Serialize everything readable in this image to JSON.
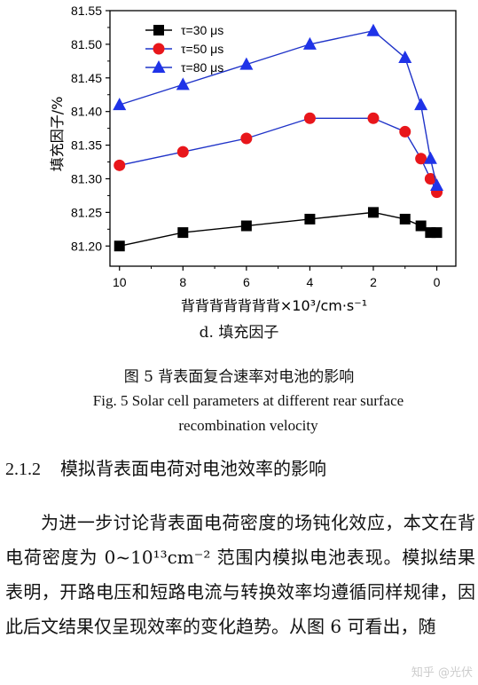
{
  "chart_data": {
    "type": "line",
    "xlabel": "背背背背背背背×10³/cm·s⁻¹",
    "ylabel": "填充因子/%",
    "x_ticks": [
      10,
      8,
      6,
      4,
      2,
      0
    ],
    "y_ticks": [
      "81.20",
      "81.25",
      "81.30",
      "81.35",
      "81.40",
      "81.45",
      "81.50",
      "81.55"
    ],
    "xlim": [
      10.3,
      -0.6
    ],
    "ylim": [
      81.17,
      81.55
    ],
    "grid": false,
    "legend_position": "top-left",
    "series": [
      {
        "name": "τ=30 μs",
        "color": "#000000",
        "marker": "square",
        "x": [
          10,
          8,
          6,
          4,
          2,
          1,
          0.5,
          0.2,
          0
        ],
        "y": [
          81.2,
          81.22,
          81.23,
          81.24,
          81.25,
          81.24,
          81.23,
          81.22,
          81.22
        ]
      },
      {
        "name": "τ=50 μs",
        "color": "#1f33c8",
        "marker_color": "#e8161b",
        "marker": "circle",
        "x": [
          10,
          8,
          6,
          4,
          2,
          1,
          0.5,
          0.2,
          0
        ],
        "y": [
          81.32,
          81.34,
          81.36,
          81.39,
          81.39,
          81.37,
          81.33,
          81.3,
          81.28
        ]
      },
      {
        "name": "τ=80 μs",
        "color": "#1f33c8",
        "marker_color": "#1f33e8",
        "marker": "triangle",
        "x": [
          10,
          8,
          6,
          4,
          2,
          1,
          0.5,
          0.2,
          0
        ],
        "y": [
          81.41,
          81.44,
          81.47,
          81.5,
          81.52,
          81.48,
          81.41,
          81.33,
          81.29
        ]
      }
    ]
  },
  "subcaption": "d.  填充因子",
  "caption_zh": "图 5   背表面复合速率对电池的影响",
  "caption_en": "Fig. 5    Solar cell parameters at different rear surface recombination velocity",
  "section": {
    "number": "2.1.2",
    "title": "模拟背表面电荷对电池效率的影响"
  },
  "paragraph": "为进一步讨论背表面电荷密度的场钝化效应，本文在背电荷密度为 0~10¹³cm⁻² 范围内模拟电池表现。模拟结果表明，开路电压和短路电流与转换效率均遵循同样规律，因此后文结果仅呈现效率的变化趋势。从图 6 可看出，随",
  "watermark": "知乎 @光伏"
}
